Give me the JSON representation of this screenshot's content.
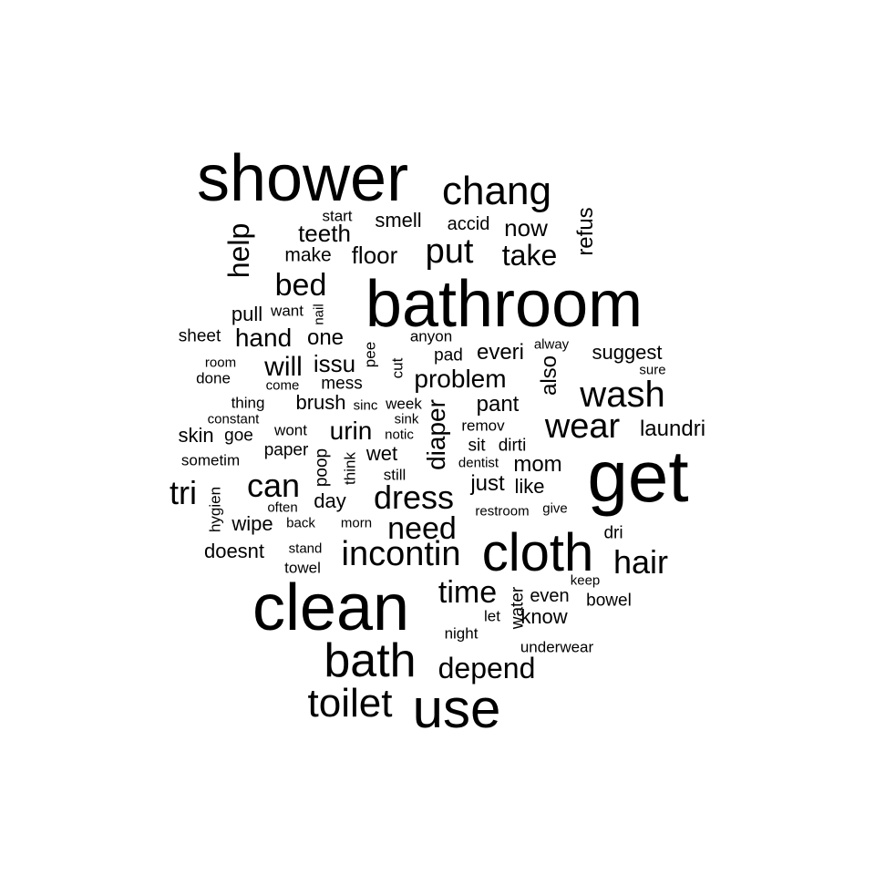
{
  "words": [
    {
      "text": "shower",
      "rotate": false
    },
    {
      "text": "chang",
      "rotate": false
    },
    {
      "text": "start",
      "rotate": false
    },
    {
      "text": "smell",
      "rotate": false
    },
    {
      "text": "accid",
      "rotate": false
    },
    {
      "text": "now",
      "rotate": false
    },
    {
      "text": "refus",
      "rotate": true
    },
    {
      "text": "help",
      "rotate": true
    },
    {
      "text": "teeth",
      "rotate": false
    },
    {
      "text": "put",
      "rotate": false
    },
    {
      "text": "take",
      "rotate": false
    },
    {
      "text": "make",
      "rotate": false
    },
    {
      "text": "floor",
      "rotate": false
    },
    {
      "text": "bed",
      "rotate": false
    },
    {
      "text": "bathroom",
      "rotate": false
    },
    {
      "text": "pull",
      "rotate": false
    },
    {
      "text": "want",
      "rotate": false
    },
    {
      "text": "nail",
      "rotate": true
    },
    {
      "text": "sheet",
      "rotate": false
    },
    {
      "text": "hand",
      "rotate": false
    },
    {
      "text": "one",
      "rotate": false
    },
    {
      "text": "anyon",
      "rotate": false
    },
    {
      "text": "pee",
      "rotate": true
    },
    {
      "text": "pad",
      "rotate": false
    },
    {
      "text": "everi",
      "rotate": false
    },
    {
      "text": "alway",
      "rotate": false
    },
    {
      "text": "suggest",
      "rotate": false
    },
    {
      "text": "room",
      "rotate": false
    },
    {
      "text": "will",
      "rotate": false
    },
    {
      "text": "issu",
      "rotate": false
    },
    {
      "text": "cut",
      "rotate": true
    },
    {
      "text": "also",
      "rotate": true
    },
    {
      "text": "sure",
      "rotate": false
    },
    {
      "text": "done",
      "rotate": false
    },
    {
      "text": "come",
      "rotate": false
    },
    {
      "text": "mess",
      "rotate": false
    },
    {
      "text": "problem",
      "rotate": false
    },
    {
      "text": "wash",
      "rotate": false
    },
    {
      "text": "thing",
      "rotate": false
    },
    {
      "text": "brush",
      "rotate": false
    },
    {
      "text": "sinc",
      "rotate": false
    },
    {
      "text": "week",
      "rotate": false
    },
    {
      "text": "diaper",
      "rotate": true
    },
    {
      "text": "pant",
      "rotate": false
    },
    {
      "text": "constant",
      "rotate": false
    },
    {
      "text": "sink",
      "rotate": false
    },
    {
      "text": "wear",
      "rotate": false
    },
    {
      "text": "laundri",
      "rotate": false
    },
    {
      "text": "skin",
      "rotate": false
    },
    {
      "text": "goe",
      "rotate": false
    },
    {
      "text": "wont",
      "rotate": false
    },
    {
      "text": "urin",
      "rotate": false
    },
    {
      "text": "notic",
      "rotate": false
    },
    {
      "text": "remov",
      "rotate": false
    },
    {
      "text": "sometim",
      "rotate": false
    },
    {
      "text": "paper",
      "rotate": false
    },
    {
      "text": "poop",
      "rotate": true
    },
    {
      "text": "wet",
      "rotate": false
    },
    {
      "text": "sit",
      "rotate": false
    },
    {
      "text": "dirti",
      "rotate": false
    },
    {
      "text": "think",
      "rotate": true
    },
    {
      "text": "dentist",
      "rotate": false
    },
    {
      "text": "mom",
      "rotate": false
    },
    {
      "text": "get",
      "rotate": false
    },
    {
      "text": "tri",
      "rotate": false
    },
    {
      "text": "can",
      "rotate": false
    },
    {
      "text": "still",
      "rotate": false
    },
    {
      "text": "just",
      "rotate": false
    },
    {
      "text": "like",
      "rotate": false
    },
    {
      "text": "hygien",
      "rotate": true
    },
    {
      "text": "day",
      "rotate": false
    },
    {
      "text": "dress",
      "rotate": false
    },
    {
      "text": "often",
      "rotate": false
    },
    {
      "text": "restroom",
      "rotate": false
    },
    {
      "text": "give",
      "rotate": false
    },
    {
      "text": "wipe",
      "rotate": false
    },
    {
      "text": "back",
      "rotate": false
    },
    {
      "text": "morn",
      "rotate": false
    },
    {
      "text": "need",
      "rotate": false
    },
    {
      "text": "dri",
      "rotate": false
    },
    {
      "text": "doesnt",
      "rotate": false
    },
    {
      "text": "stand",
      "rotate": false
    },
    {
      "text": "incontin",
      "rotate": false
    },
    {
      "text": "cloth",
      "rotate": false
    },
    {
      "text": "hair",
      "rotate": false
    },
    {
      "text": "towel",
      "rotate": false
    },
    {
      "text": "keep",
      "rotate": false
    },
    {
      "text": "time",
      "rotate": false
    },
    {
      "text": "water",
      "rotate": true
    },
    {
      "text": "even",
      "rotate": false
    },
    {
      "text": "bowel",
      "rotate": false
    },
    {
      "text": "clean",
      "rotate": false
    },
    {
      "text": "let",
      "rotate": false
    },
    {
      "text": "know",
      "rotate": false
    },
    {
      "text": "night",
      "rotate": false
    },
    {
      "text": "underwear",
      "rotate": false
    },
    {
      "text": "bath",
      "rotate": false
    },
    {
      "text": "depend",
      "rotate": false
    },
    {
      "text": "toilet",
      "rotate": false
    },
    {
      "text": "use",
      "rotate": false
    }
  ]
}
